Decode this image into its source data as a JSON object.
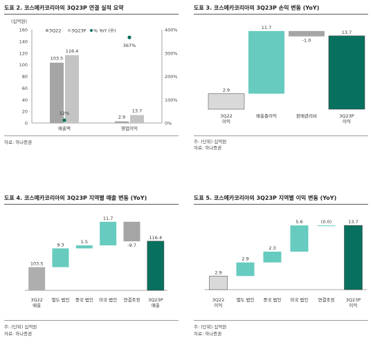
{
  "colors": {
    "gray_dark": "#a5a5a5",
    "gray_light": "#c4c4c4",
    "teal": "#67cbbf",
    "green_dark": "#08705f",
    "axis": "#888888"
  },
  "panels": [
    {
      "title": "도표 2. 코스메카코리아의 3Q23P 연결 실적 요약",
      "notes": [
        "자료: 하나증권"
      ]
    },
    {
      "title": "도표 3. 코스메카코리아의 3Q23P 손익 변동 (YoY)",
      "notes": [
        "주: (단위) 십억원",
        "자료: 하나증권"
      ]
    },
    {
      "title": "도표 4. 코스메카코리아의 3Q23P 지역별 매출 변동 (YoY)",
      "notes": [
        "주: (단위) 십억원",
        "자료: 하나증권"
      ]
    },
    {
      "title": "도표 5. 코스메카코리아의 3Q23P 지역별 이익 변동 (YoY)",
      "notes": [
        "주: (단위) 십억원",
        "자료: 하나증권"
      ]
    }
  ],
  "chart_data": [
    {
      "type": "bar",
      "unit_label": "(십억원)",
      "categories": [
        "매출액",
        "영업이익"
      ],
      "series": [
        {
          "name": "3Q22",
          "values": [
            103.5,
            2.9
          ],
          "color": "#a5a5a5"
        },
        {
          "name": "3Q23P",
          "values": [
            116.4,
            13.7
          ],
          "color": "#c4c4c4"
        }
      ],
      "yoy": {
        "name": "% YoY (우)",
        "values": [
          12,
          367
        ],
        "labels": [
          "12%",
          "367%"
        ],
        "color": "#08705f"
      },
      "value_labels": [
        [
          "103.5",
          "2.9"
        ],
        [
          "116.4",
          "13.7"
        ]
      ],
      "ylim": [
        0,
        160
      ],
      "yticks": [
        "0",
        "20",
        "40",
        "60",
        "80",
        "100",
        "120",
        "140",
        "160"
      ],
      "y2lim": [
        0,
        400
      ],
      "y2ticks": [
        "0%",
        "100%",
        "200%",
        "300%",
        "400%"
      ],
      "legend_position": "top"
    },
    {
      "type": "waterfall",
      "steps": [
        {
          "label": [
            "3Q22",
            "이익"
          ],
          "value": 2.9,
          "kind": "total",
          "text": "2.9"
        },
        {
          "label": [
            "매출총이익"
          ],
          "value": 11.7,
          "kind": "delta",
          "text": "11.7"
        },
        {
          "label": [
            "판매관리비"
          ],
          "value": -1.0,
          "kind": "delta",
          "text": "-1.0"
        },
        {
          "label": [
            "3Q23P",
            "이익"
          ],
          "value": 13.7,
          "kind": "end",
          "text": "13.7"
        }
      ]
    },
    {
      "type": "waterfall",
      "steps": [
        {
          "label": [
            "3Q22",
            "매출"
          ],
          "value": 103.5,
          "kind": "total",
          "text": "103.5"
        },
        {
          "label": [
            "별도 법인"
          ],
          "value": 9.3,
          "kind": "delta",
          "text": "9.3"
        },
        {
          "label": [
            "중국 법인"
          ],
          "value": 1.5,
          "kind": "delta",
          "text": "1.5"
        },
        {
          "label": [
            "미국 법인"
          ],
          "value": 11.7,
          "kind": "delta",
          "text": "11.7"
        },
        {
          "label": [
            "연결조정"
          ],
          "value": -9.7,
          "kind": "delta",
          "text": "-9.7"
        },
        {
          "label": [
            "3Q23P",
            "매출"
          ],
          "value": 116.4,
          "kind": "end",
          "text": "116.4"
        }
      ]
    },
    {
      "type": "waterfall",
      "steps": [
        {
          "label": [
            "3Q22",
            "이익"
          ],
          "value": 2.9,
          "kind": "total",
          "text": "2.9"
        },
        {
          "label": [
            "별도 법인"
          ],
          "value": 2.9,
          "kind": "delta",
          "text": "2.9"
        },
        {
          "label": [
            "중국 법인"
          ],
          "value": 2.3,
          "kind": "delta",
          "text": "2.3"
        },
        {
          "label": [
            "미국 법인"
          ],
          "value": 5.6,
          "kind": "delta",
          "text": "5.6"
        },
        {
          "label": [
            "연결조정"
          ],
          "value": 0.0,
          "kind": "delta",
          "text": "(0.0)"
        },
        {
          "label": [
            "3Q23P",
            "이익"
          ],
          "value": 13.7,
          "kind": "end",
          "text": "13.7"
        }
      ]
    }
  ]
}
